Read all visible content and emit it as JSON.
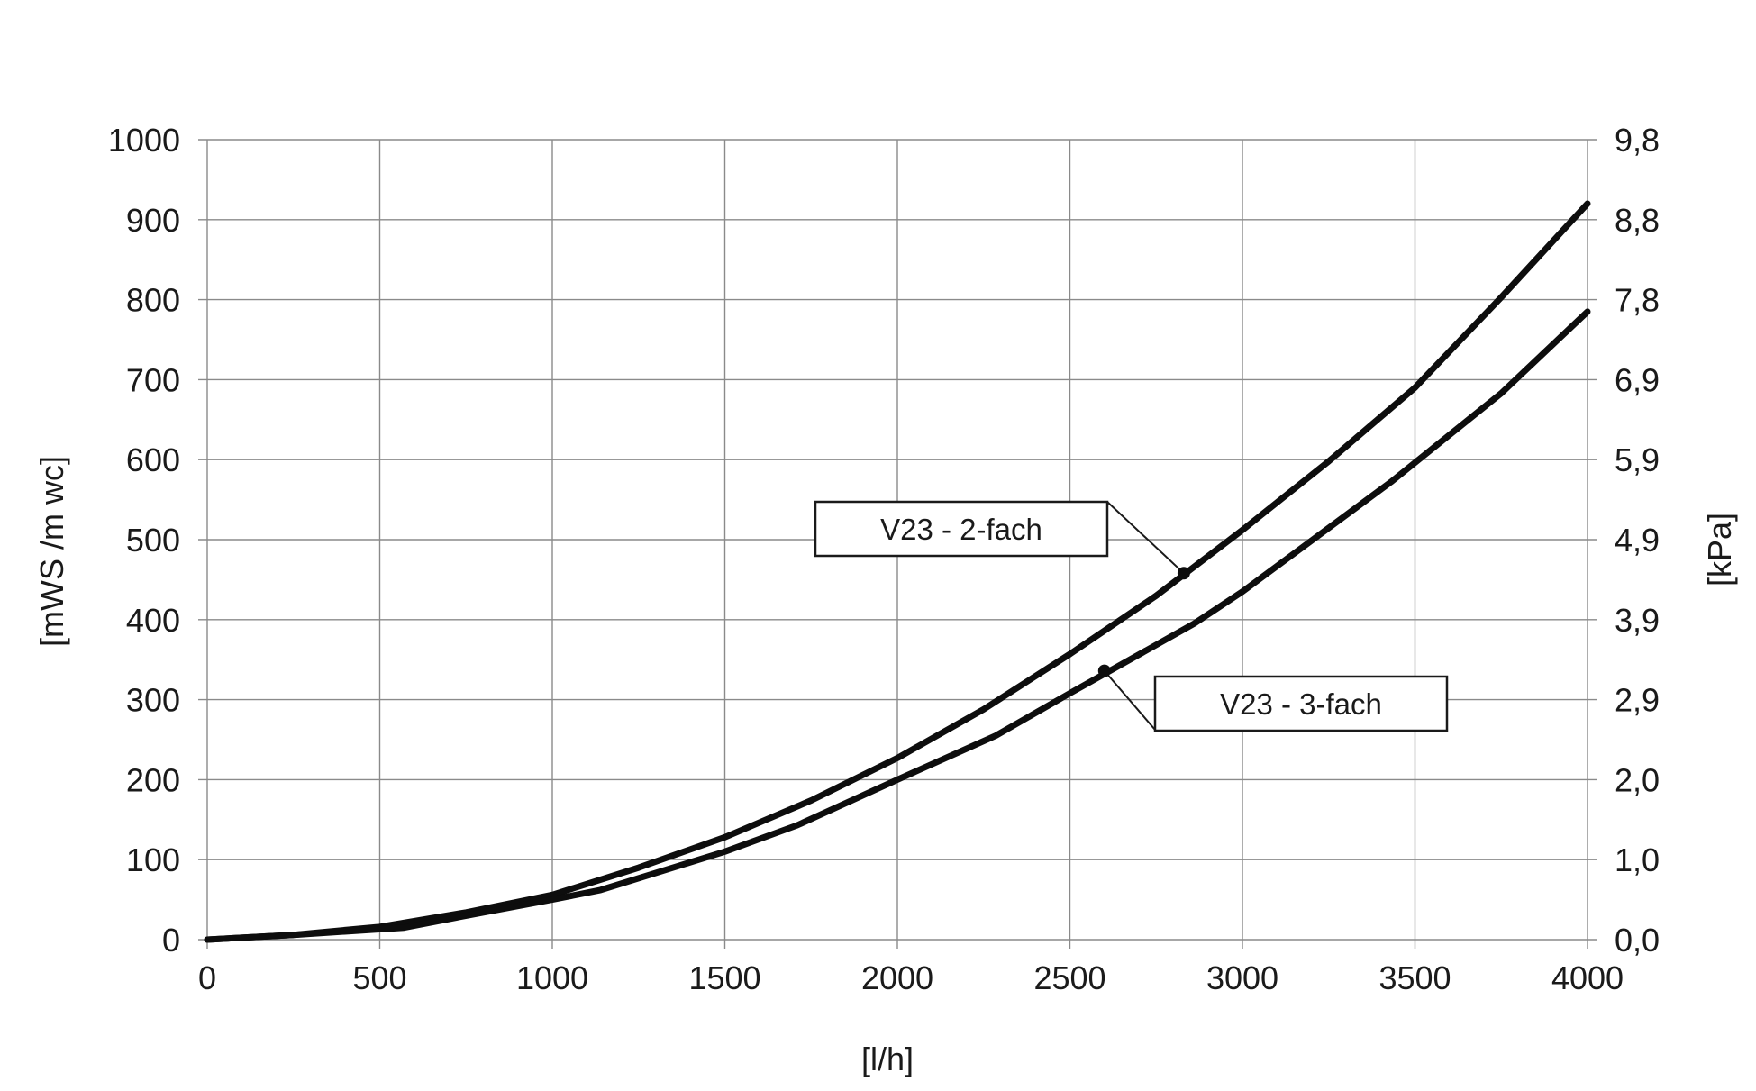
{
  "chart_data": {
    "type": "line",
    "xlabel": "[l/h]",
    "ylabel": "[mWS /m wc]",
    "y2label": "[kPa]",
    "xlim": [
      0,
      4000
    ],
    "ylim": [
      0,
      1000
    ],
    "grid": true,
    "x_ticks": [
      "0",
      "500",
      "1000",
      "1500",
      "2000",
      "2500",
      "3000",
      "3500",
      "4000"
    ],
    "y_ticks": [
      "0",
      "100",
      "200",
      "300",
      "400",
      "500",
      "600",
      "700",
      "800",
      "900",
      "1000"
    ],
    "y2_ticks": [
      "0,0",
      "1,0",
      "2,0",
      "2,9",
      "3,9",
      "4,9",
      "5,9",
      "6,9",
      "7,8",
      "8,8",
      "9,8"
    ],
    "series": [
      {
        "name": "V23 - 2-fach",
        "color": "#0d0d0d",
        "x": [
          0,
          250,
          500,
          750,
          1000,
          1250,
          1500,
          1750,
          2000,
          2250,
          2500,
          2750,
          3000,
          3250,
          3500,
          3750,
          4000
        ],
        "y": [
          0,
          6,
          16,
          34,
          56,
          90,
          128,
          174,
          227,
          288,
          357,
          430,
          512,
          598,
          690,
          803,
          920
        ]
      },
      {
        "name": "V23 - 3-fach",
        "color": "#0d0d0d",
        "x": [
          0,
          250,
          570,
          750,
          1000,
          1140,
          1500,
          1710,
          2000,
          2285,
          2500,
          2860,
          3000,
          3430,
          3750,
          4000
        ],
        "y": [
          0,
          6,
          15,
          30,
          50,
          62,
          110,
          143,
          200,
          255,
          308,
          395,
          435,
          572,
          683,
          785
        ]
      }
    ],
    "annotations": [
      {
        "text": "V23 - 2-fach",
        "series": 0,
        "x": 2830,
        "y": 458
      },
      {
        "text": "V23 - 3-fach",
        "series": 1,
        "x": 2600,
        "y": 336
      }
    ]
  }
}
